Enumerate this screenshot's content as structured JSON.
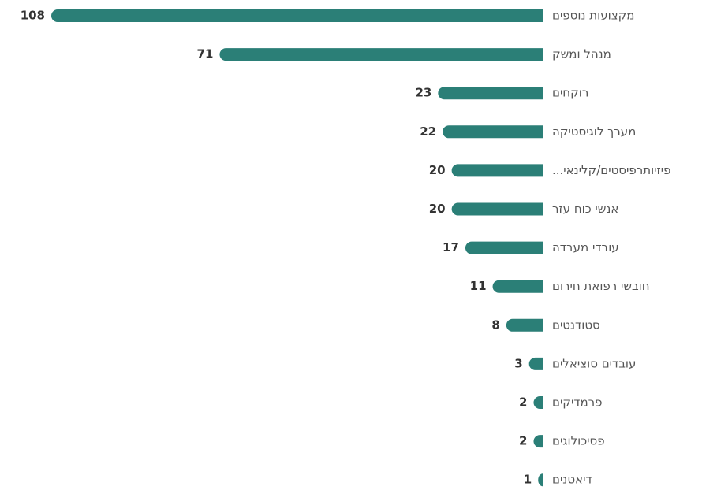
{
  "chart_data": {
    "type": "bar",
    "orientation": "horizontal",
    "color": "#2b7f77",
    "categories": [
      "מקצועות נוספים",
      "מנהל ומשק",
      "רוקחים",
      "מערך לוגיסטיקה",
      "פיזיותרפיסטים/קלינאי...",
      "אנשי כוח עזר",
      "עובדי מעבדה",
      "חובשי רפואת חירום",
      "סטודנטים",
      "עובדים סוציאלים",
      "פרמדיקים",
      "פסיכולוגים",
      "דיאטנים"
    ],
    "values": [
      108,
      71,
      23,
      22,
      20,
      20,
      17,
      11,
      8,
      3,
      2,
      2,
      1
    ]
  }
}
